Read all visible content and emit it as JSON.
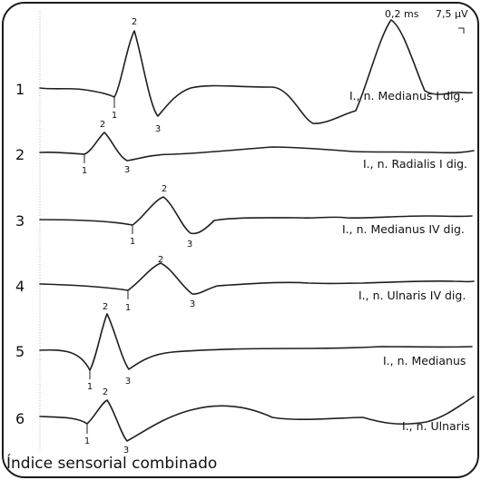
{
  "scale": {
    "time": "0,2 ms",
    "amplitude": "7,5 µV"
  },
  "rows": [
    {
      "index": "1",
      "nerve": "I., n. Medianus I dig.",
      "markers": [
        "1",
        "2",
        "3"
      ]
    },
    {
      "index": "2",
      "nerve": "I., n. Radialis I dig.",
      "markers": [
        "1",
        "2",
        "3"
      ]
    },
    {
      "index": "3",
      "nerve": "I., n. Medianus IV dig.",
      "markers": [
        "1",
        "2",
        "3"
      ]
    },
    {
      "index": "4",
      "nerve": "I., n. Ulnaris IV dig.",
      "markers": [
        "1",
        "2",
        "3"
      ]
    },
    {
      "index": "5",
      "nerve": "I., n. Medianus",
      "markers": [
        "1",
        "2",
        "3"
      ]
    },
    {
      "index": "6",
      "nerve": "I., n. Ulnaris",
      "markers": [
        "1",
        "2",
        "3"
      ]
    }
  ],
  "footer": "Índice sensorial combinado"
}
